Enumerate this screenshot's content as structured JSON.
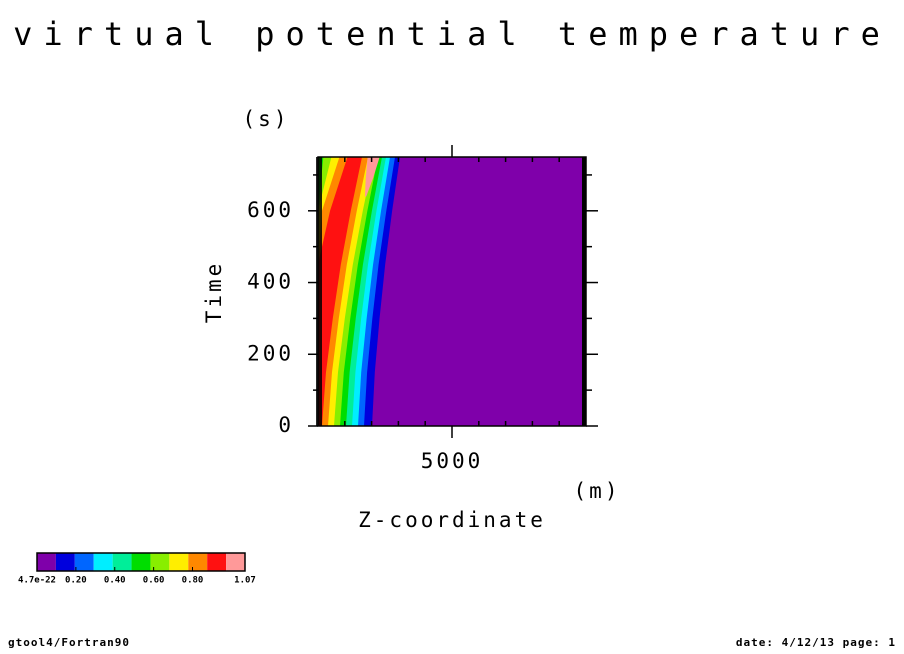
{
  "chart_data": {
    "type": "contour",
    "title": "virtual potential temperature",
    "x_label": "Z-coordinate",
    "x_unit": "(m)",
    "y_label": "Time",
    "y_unit": "(s)",
    "xlim": [
      0,
      10000
    ],
    "ylim": [
      0,
      750
    ],
    "xticks": [
      5000
    ],
    "xminorticks": [
      1000,
      2000,
      3000,
      4000,
      6000,
      7000,
      8000,
      9000
    ],
    "yticks": [
      0,
      200,
      400,
      600
    ],
    "yminorticks": [
      100,
      300,
      500,
      700
    ],
    "colorbar": {
      "colors": [
        "#7f00aa",
        "#0000dd",
        "#0066ff",
        "#00eeff",
        "#00ee99",
        "#00dd00",
        "#88ee00",
        "#ffee00",
        "#ff8800",
        "#ff1111",
        "#ff9999"
      ],
      "ticks": [
        {
          "value": 4.7e-22,
          "label": "4.7e-22"
        },
        {
          "value": 0.2,
          "label": "0.20"
        },
        {
          "value": 0.4,
          "label": "0.40"
        },
        {
          "value": 0.6,
          "label": "0.60"
        },
        {
          "value": 0.8,
          "label": "0.80"
        },
        {
          "value": 1.07,
          "label": "1.07"
        }
      ]
    },
    "contours": [
      {
        "t": [
          0,
          150,
          300,
          450,
          600,
          750
        ],
        "left": [
          0,
          0,
          0,
          0,
          0,
          0
        ],
        "right": [
          2015,
          2120,
          2297,
          2506,
          2767,
          3060
        ]
      },
      {
        "t": [
          0,
          150,
          300,
          450,
          600,
          750
        ],
        "left": [
          0,
          0,
          0,
          0,
          0,
          0
        ],
        "right": [
          1716,
          1832,
          2028,
          2260,
          2549,
          2873
        ]
      },
      {
        "t": [
          0,
          150,
          300,
          450,
          600,
          750
        ],
        "left": [
          0,
          0,
          0,
          0,
          0,
          0
        ],
        "right": [
          1493,
          1612,
          1815,
          2054,
          2353,
          2687
        ]
      },
      {
        "t": [
          0,
          150,
          300,
          450,
          600,
          750
        ],
        "left": [
          0,
          0,
          0,
          0,
          0,
          0
        ],
        "right": [
          1269,
          1396,
          1611,
          1865,
          2182,
          2537
        ]
      },
      {
        "t": [
          0,
          150,
          300,
          450,
          600,
          750
        ],
        "left": [
          0,
          0,
          0,
          0,
          0,
          0
        ],
        "right": [
          1045,
          1179,
          1408,
          1676,
          2012,
          2388
        ]
      },
      {
        "t": [
          0,
          150,
          300,
          450,
          600,
          750
        ],
        "left": [
          0,
          0,
          0,
          0,
          0,
          200
        ],
        "right": [
          821,
          963,
          1204,
          1487,
          1842,
          2239
        ]
      },
      {
        "t": [
          0,
          150,
          300,
          450,
          600,
          750
        ],
        "left": [
          0,
          0,
          0,
          0,
          0,
          500
        ],
        "right": [
          597,
          746,
          1000,
          1299,
          1672,
          2090
        ]
      },
      {
        "t": [
          0,
          150,
          300,
          450,
          600,
          750
        ],
        "left": [
          0,
          0,
          0,
          0,
          150,
          800
        ],
        "right": [
          373,
          522,
          776,
          1075,
          1448,
          1866
        ]
      },
      {
        "t": [
          0,
          150,
          300,
          450,
          600,
          750
        ],
        "left": [
          0,
          0,
          0,
          0,
          450,
          1100
        ],
        "right": [
          149,
          298,
          552,
          851,
          1224,
          1642
        ]
      },
      {
        "t": [
          640,
          690,
          750
        ],
        "left": [
          1750,
          1780,
          1850
        ],
        "right": [
          1800,
          2050,
          2300
        ]
      }
    ],
    "footer_left": "gtool4/Fortran90",
    "footer_right": "date: 4/12/13 page: 1"
  }
}
